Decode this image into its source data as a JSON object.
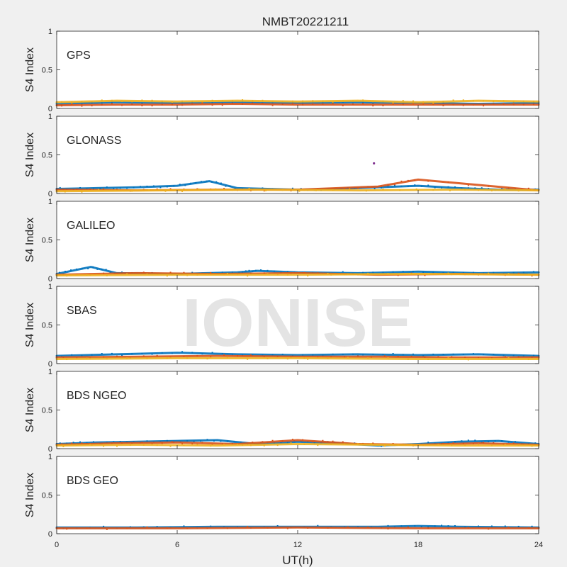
{
  "figure": {
    "title": "NMBT20221211",
    "watermark": "IONISE"
  },
  "chart_data": {
    "type": "scatter",
    "title": "NMBT20221211",
    "xlabel": "UT(h)",
    "ylabel": "S4 Index",
    "xlim": [
      0,
      24
    ],
    "ylim": [
      0,
      1
    ],
    "x_ticks": [
      0,
      6,
      12,
      18,
      24
    ],
    "y_ticks": [
      0,
      0.5,
      1
    ],
    "y_tick_labels": [
      "0",
      "0.5",
      "1"
    ],
    "grid": false,
    "legend": "none",
    "series_colors": [
      "#0072BD",
      "#D95319",
      "#EDB120",
      "#7E2F8E",
      "#77AC30",
      "#4DBEEE",
      "#A2142F"
    ],
    "panels": [
      {
        "label": "GPS",
        "series": [
          {
            "x": [
              0,
              3,
              6,
              9,
              12,
              15,
              18,
              21,
              24
            ],
            "y": [
              0.06,
              0.08,
              0.07,
              0.08,
              0.07,
              0.08,
              0.07,
              0.06,
              0.07
            ]
          },
          {
            "x": [
              0,
              3,
              6,
              9,
              12,
              15,
              18,
              21,
              24
            ],
            "y": [
              0.04,
              0.05,
              0.05,
              0.06,
              0.05,
              0.05,
              0.05,
              0.05,
              0.05
            ]
          },
          {
            "x": [
              0,
              3,
              6,
              9,
              12,
              15,
              18,
              21,
              24
            ],
            "y": [
              0.08,
              0.1,
              0.09,
              0.1,
              0.09,
              0.1,
              0.08,
              0.1,
              0.09
            ]
          }
        ]
      },
      {
        "label": "GLONASS",
        "series": [
          {
            "x": [
              0,
              2,
              4,
              6,
              7.6,
              9,
              12,
              14,
              16,
              18,
              20,
              22,
              24
            ],
            "y": [
              0.06,
              0.07,
              0.08,
              0.1,
              0.16,
              0.07,
              0.05,
              0.06,
              0.08,
              0.1,
              0.07,
              0.05,
              0.05
            ]
          },
          {
            "x": [
              0,
              4,
              8,
              12,
              16,
              18,
              24
            ],
            "y": [
              0.05,
              0.04,
              0.05,
              0.05,
              0.09,
              0.18,
              0.04
            ]
          },
          {
            "x": [
              0,
              5,
              10,
              15,
              20,
              24
            ],
            "y": [
              0.03,
              0.04,
              0.05,
              0.04,
              0.05,
              0.04
            ]
          },
          {
            "x": [
              15.8
            ],
            "y": [
              0.39
            ]
          }
        ]
      },
      {
        "label": "GALILEO",
        "series": [
          {
            "x": [
              0,
              1.7,
              3,
              6,
              9,
              10,
              12,
              15,
              18,
              21,
              24
            ],
            "y": [
              0.06,
              0.15,
              0.07,
              0.06,
              0.08,
              0.1,
              0.08,
              0.07,
              0.09,
              0.07,
              0.08
            ]
          },
          {
            "x": [
              0,
              4,
              8,
              12,
              16,
              20,
              24
            ],
            "y": [
              0.05,
              0.07,
              0.06,
              0.07,
              0.05,
              0.06,
              0.05
            ]
          },
          {
            "x": [
              0,
              6,
              12,
              18,
              24
            ],
            "y": [
              0.04,
              0.05,
              0.05,
              0.06,
              0.05
            ]
          }
        ]
      },
      {
        "label": "SBAS",
        "series": [
          {
            "x": [
              0,
              3,
              6,
              9,
              12,
              15,
              18,
              21,
              24
            ],
            "y": [
              0.1,
              0.12,
              0.14,
              0.12,
              0.11,
              0.12,
              0.11,
              0.12,
              0.1
            ]
          },
          {
            "x": [
              0,
              4,
              8,
              12,
              16,
              20,
              24
            ],
            "y": [
              0.08,
              0.09,
              0.1,
              0.09,
              0.09,
              0.08,
              0.08
            ]
          },
          {
            "x": [
              0,
              6,
              12,
              18,
              24
            ],
            "y": [
              0.06,
              0.07,
              0.07,
              0.06,
              0.06
            ]
          }
        ]
      },
      {
        "label": "BDS NGEO",
        "series": [
          {
            "x": [
              0,
              2,
              4,
              6,
              8,
              10,
              12,
              14,
              16,
              18,
              20,
              22,
              24
            ],
            "y": [
              0.06,
              0.08,
              0.09,
              0.1,
              0.11,
              0.06,
              0.09,
              0.07,
              0.04,
              0.06,
              0.09,
              0.1,
              0.06
            ]
          },
          {
            "x": [
              0,
              3,
              6,
              9,
              12,
              15,
              18,
              21,
              24
            ],
            "y": [
              0.05,
              0.07,
              0.08,
              0.06,
              0.11,
              0.06,
              0.05,
              0.07,
              0.05
            ]
          },
          {
            "x": [
              0,
              4,
              8,
              12,
              16,
              20,
              24
            ],
            "y": [
              0.04,
              0.05,
              0.04,
              0.06,
              0.05,
              0.04,
              0.04
            ]
          }
        ]
      },
      {
        "label": "BDS GEO",
        "series": [
          {
            "x": [
              0,
              4,
              8,
              12,
              16,
              18,
              20,
              24
            ],
            "y": [
              0.08,
              0.08,
              0.09,
              0.09,
              0.09,
              0.1,
              0.09,
              0.08
            ]
          },
          {
            "x": [
              0,
              6,
              12,
              18,
              24
            ],
            "y": [
              0.07,
              0.07,
              0.08,
              0.07,
              0.07
            ]
          }
        ]
      }
    ]
  }
}
